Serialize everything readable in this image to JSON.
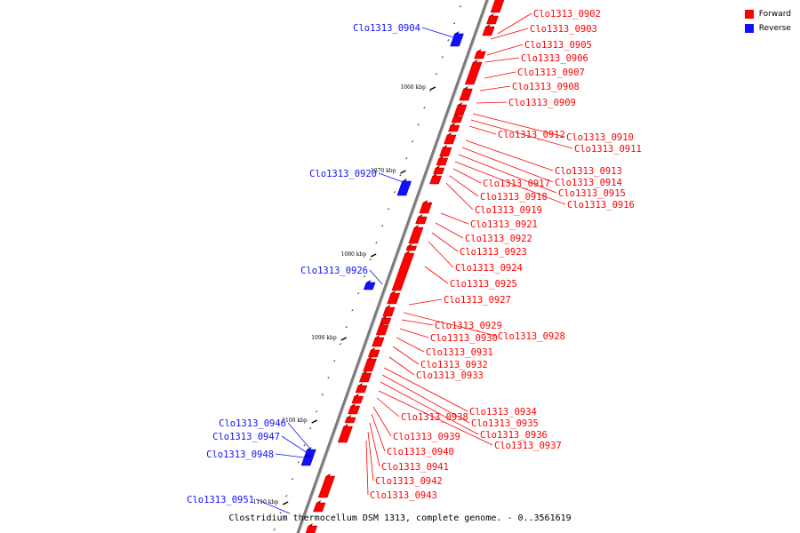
{
  "colors": {
    "forward": "#ff0000",
    "forward_dark": "#a80000",
    "reverse": "#1010ff",
    "reverse_dark": "#0000a0",
    "backbone": "#7a7a7a"
  },
  "legend": {
    "forward_label": "Forward",
    "reverse_label": "Reverse"
  },
  "caption": "Clostridium thermocellum DSM 1313, complete genome. - 0..3561619",
  "ticks": [
    "1060 kbp",
    "1070 kbp",
    "1080 kbp",
    "1090 kbp",
    "1100 kbp",
    "1110 kbp"
  ],
  "forward_genes": [
    "Clo1313_0902",
    "Clo1313_0903",
    "Clo1313_0905",
    "Clo1313_0906",
    "Clo1313_0907",
    "Clo1313_0908",
    "Clo1313_0909",
    "Clo1313_0910",
    "Clo1313_0911",
    "Clo1313_0912",
    "Clo1313_0913",
    "Clo1313_0914",
    "Clo1313_0915",
    "Clo1313_0916",
    "Clo1313_0917",
    "Clo1313_0918",
    "Clo1313_0919",
    "Clo1313_0921",
    "Clo1313_0922",
    "Clo1313_0923",
    "Clo1313_0924",
    "Clo1313_0925",
    "Clo1313_0927",
    "Clo1313_0928",
    "Clo1313_0929",
    "Clo1313_0930",
    "Clo1313_0931",
    "Clo1313_0932",
    "Clo1313_0933",
    "Clo1313_0934",
    "Clo1313_0935",
    "Clo1313_0936",
    "Clo1313_0937",
    "Clo1313_0938",
    "Clo1313_0939",
    "Clo1313_0940",
    "Clo1313_0941",
    "Clo1313_0942",
    "Clo1313_0943"
  ],
  "reverse_genes": [
    "Clo1313_0904",
    "Clo1313_0920",
    "Clo1313_0926",
    "Clo1313_0946",
    "Clo1313_0947",
    "Clo1313_0948",
    "Clo1313_0951"
  ]
}
